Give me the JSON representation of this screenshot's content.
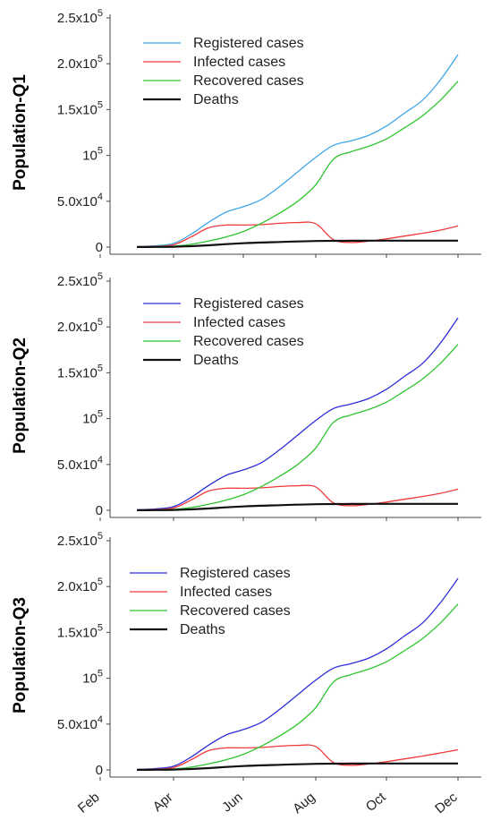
{
  "x_categories": [
    "Feb",
    "Apr",
    "Jun",
    "Aug",
    "Oct",
    "Dec"
  ],
  "y_tick_labels": [
    "0",
    "5.0x10^4",
    "10^5",
    "1.5x10^5",
    "2.0x10^5",
    "2.5x10^5"
  ],
  "chart_data": [
    {
      "type": "line",
      "ylabel": "Population-Q1",
      "ylim": [
        0,
        250000
      ],
      "xlim": [
        2.0,
        12.2
      ],
      "legend_position": "top-left",
      "series": [
        {
          "name": "Registered cases",
          "color": "#3fa6e6",
          "x": [
            3.0,
            3.5,
            4.0,
            4.5,
            5.0,
            5.5,
            6.0,
            6.5,
            7.0,
            7.5,
            8.0,
            8.5,
            9.0,
            9.5,
            10.0,
            10.5,
            11.0,
            11.5,
            12.0
          ],
          "y": [
            500,
            1500,
            4000,
            14000,
            27000,
            38000,
            44000,
            52000,
            66000,
            82000,
            98000,
            111000,
            116000,
            122000,
            132000,
            146000,
            160000,
            182000,
            210000
          ]
        },
        {
          "name": "Infected cases",
          "color": "#ee3a3a",
          "x": [
            3.0,
            3.5,
            4.0,
            4.5,
            5.0,
            5.5,
            6.0,
            6.5,
            7.0,
            7.5,
            8.0,
            8.5,
            9.0,
            9.5,
            10.0,
            10.5,
            11.0,
            11.5,
            12.0
          ],
          "y": [
            300,
            800,
            2500,
            11000,
            21000,
            24000,
            24000,
            24500,
            26000,
            26800,
            25500,
            8000,
            5000,
            6500,
            9000,
            12000,
            15000,
            18500,
            23000
          ]
        },
        {
          "name": "Recovered cases",
          "color": "#2ec42e",
          "x": [
            3.0,
            3.5,
            4.0,
            4.5,
            5.0,
            5.5,
            6.0,
            6.5,
            7.0,
            7.5,
            8.0,
            8.5,
            9.0,
            9.5,
            10.0,
            10.5,
            11.0,
            11.5,
            12.0
          ],
          "y": [
            100,
            300,
            1000,
            3000,
            6500,
            11000,
            17000,
            26000,
            37000,
            50000,
            68000,
            96000,
            104000,
            110000,
            118000,
            130000,
            143000,
            160000,
            181000
          ]
        },
        {
          "name": "Deaths",
          "color": "#111111",
          "x": [
            3.0,
            3.5,
            4.0,
            4.5,
            5.0,
            5.5,
            6.0,
            6.5,
            7.0,
            7.5,
            8.0,
            8.5,
            9.0,
            9.5,
            10.0,
            10.5,
            11.0,
            11.5,
            12.0
          ],
          "y": [
            50,
            150,
            400,
            1000,
            2000,
            3200,
            4200,
            5000,
            5600,
            6200,
            6600,
            6800,
            6900,
            7000,
            7000,
            7000,
            7000,
            7000,
            7000
          ]
        }
      ]
    },
    {
      "type": "line",
      "ylabel": "Population-Q2",
      "ylim": [
        0,
        250000
      ],
      "xlim": [
        2.0,
        12.2
      ],
      "legend_position": "top-left",
      "series": [
        {
          "name": "Registered cases",
          "color": "#2d2dd8",
          "x": [
            3.0,
            3.5,
            4.0,
            4.5,
            5.0,
            5.5,
            6.0,
            6.5,
            7.0,
            7.5,
            8.0,
            8.5,
            9.0,
            9.5,
            10.0,
            10.5,
            11.0,
            11.5,
            12.0
          ],
          "y": [
            500,
            1500,
            4000,
            14000,
            27000,
            38000,
            44000,
            52000,
            66000,
            82000,
            98000,
            111000,
            116000,
            122000,
            132000,
            146000,
            160000,
            182000,
            210000
          ]
        },
        {
          "name": "Infected cases",
          "color": "#ee3a3a",
          "x": [
            3.0,
            3.5,
            4.0,
            4.5,
            5.0,
            5.5,
            6.0,
            6.5,
            7.0,
            7.5,
            8.0,
            8.5,
            9.0,
            9.5,
            10.0,
            10.5,
            11.0,
            11.5,
            12.0
          ],
          "y": [
            300,
            800,
            2500,
            11000,
            21000,
            24000,
            24000,
            24500,
            26000,
            26800,
            25500,
            8000,
            5000,
            6500,
            9000,
            12000,
            15000,
            18500,
            23000
          ]
        },
        {
          "name": "Recovered cases",
          "color": "#2ec42e",
          "x": [
            3.0,
            3.5,
            4.0,
            4.5,
            5.0,
            5.5,
            6.0,
            6.5,
            7.0,
            7.5,
            8.0,
            8.5,
            9.0,
            9.5,
            10.0,
            10.5,
            11.0,
            11.5,
            12.0
          ],
          "y": [
            100,
            300,
            1000,
            3000,
            6500,
            11000,
            17000,
            26000,
            37000,
            50000,
            68000,
            96000,
            104000,
            110000,
            118000,
            130000,
            143000,
            160000,
            181000
          ]
        },
        {
          "name": "Deaths",
          "color": "#111111",
          "x": [
            3.0,
            3.5,
            4.0,
            4.5,
            5.0,
            5.5,
            6.0,
            6.5,
            7.0,
            7.5,
            8.0,
            8.5,
            9.0,
            9.5,
            10.0,
            10.5,
            11.0,
            11.5,
            12.0
          ],
          "y": [
            50,
            150,
            400,
            1000,
            2000,
            3200,
            4200,
            5000,
            5600,
            6200,
            6600,
            6800,
            6900,
            7000,
            7000,
            7000,
            7000,
            7000,
            7000
          ]
        }
      ]
    },
    {
      "type": "line",
      "ylabel": "Population-Q3",
      "ylim": [
        0,
        250000
      ],
      "xlim": [
        2.0,
        12.2
      ],
      "legend_position": "top-left",
      "series": [
        {
          "name": "Registered cases",
          "color": "#2d2dd8",
          "x": [
            3.0,
            3.5,
            4.0,
            4.5,
            5.0,
            5.5,
            6.0,
            6.5,
            7.0,
            7.5,
            8.0,
            8.5,
            9.0,
            9.5,
            10.0,
            10.5,
            11.0,
            11.5,
            12.0
          ],
          "y": [
            500,
            1500,
            4000,
            14000,
            27000,
            38000,
            44000,
            52000,
            66000,
            82000,
            98000,
            111000,
            116000,
            122000,
            132000,
            146000,
            160000,
            182000,
            209000
          ]
        },
        {
          "name": "Infected cases",
          "color": "#ee3a3a",
          "x": [
            3.0,
            3.5,
            4.0,
            4.5,
            5.0,
            5.5,
            6.0,
            6.5,
            7.0,
            7.5,
            8.0,
            8.5,
            9.0,
            9.5,
            10.0,
            10.5,
            11.0,
            11.5,
            12.0
          ],
          "y": [
            300,
            800,
            2500,
            11000,
            21000,
            24000,
            24000,
            24500,
            26000,
            26800,
            25500,
            8000,
            5000,
            6500,
            9000,
            12000,
            15000,
            18500,
            22000
          ]
        },
        {
          "name": "Recovered cases",
          "color": "#2ec42e",
          "x": [
            3.0,
            3.5,
            4.0,
            4.5,
            5.0,
            5.5,
            6.0,
            6.5,
            7.0,
            7.5,
            8.0,
            8.5,
            9.0,
            9.5,
            10.0,
            10.5,
            11.0,
            11.5,
            12.0
          ],
          "y": [
            100,
            300,
            1000,
            3000,
            6500,
            11000,
            17000,
            26000,
            37000,
            50000,
            68000,
            96000,
            104000,
            110000,
            118000,
            130000,
            143000,
            160000,
            181000
          ]
        },
        {
          "name": "Deaths",
          "color": "#111111",
          "x": [
            3.0,
            3.5,
            4.0,
            4.5,
            5.0,
            5.5,
            6.0,
            6.5,
            7.0,
            7.5,
            8.0,
            8.5,
            9.0,
            9.5,
            10.0,
            10.5,
            11.0,
            11.5,
            12.0
          ],
          "y": [
            50,
            150,
            400,
            1000,
            2000,
            3200,
            4200,
            5000,
            5600,
            6200,
            6600,
            6800,
            6900,
            7000,
            7000,
            7000,
            7000,
            7000,
            7000
          ]
        }
      ]
    }
  ]
}
